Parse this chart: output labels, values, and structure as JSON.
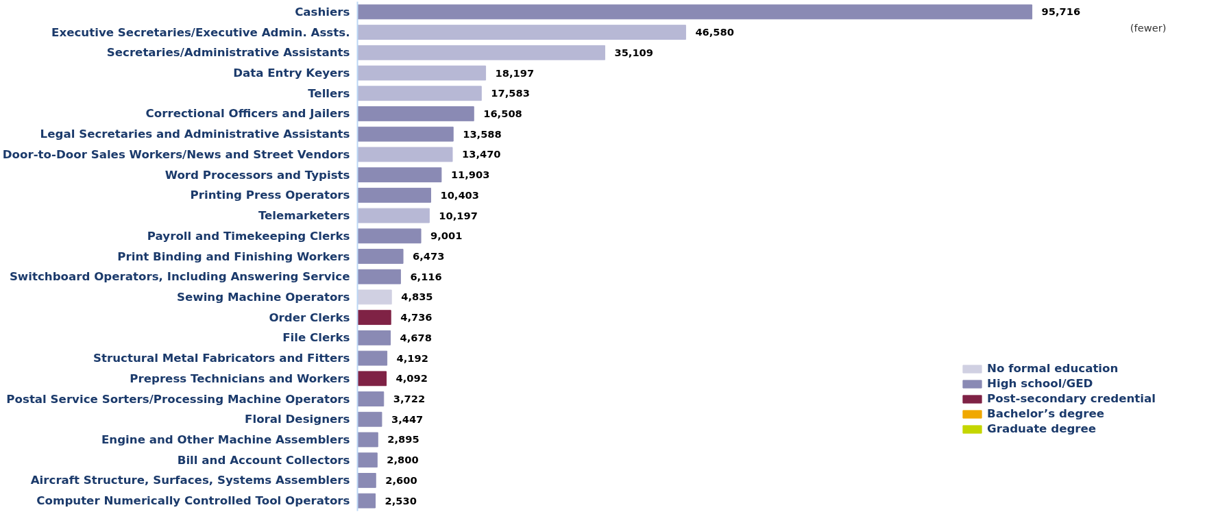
{
  "chart_data": {
    "type": "bar",
    "orientation": "horizontal",
    "categories": [
      "Cashiers",
      "Executive Secretaries/Executive Admin. Assts.",
      "Secretaries/Administrative Assistants",
      "Data Entry Keyers",
      "Tellers",
      "Correctional Officers and Jailers",
      "Legal Secretaries and Administrative Assistants",
      "Door-to-Door Sales Workers/News and Street Vendors",
      "Word Processors and Typists",
      "Printing Press Operators",
      "Telemarketers",
      "Payroll and Timekeeping Clerks",
      "Print Binding and Finishing Workers",
      "Switchboard Operators, Including Answering Service",
      "Sewing Machine Operators",
      "Order Clerks",
      "File Clerks",
      "Structural Metal Fabricators and Fitters",
      "Prepress Technicians and Workers",
      "Postal Service Sorters/Processing Machine Operators",
      "Floral Designers",
      "Engine and Other Machine Assemblers",
      "Bill and Account Collectors",
      "Aircraft Structure, Surfaces, Systems Assemblers",
      "Computer Numerically Controlled Tool Operators"
    ],
    "series": [
      {
        "name": "No formal education",
        "color": "#d0d0e2",
        "values": [
          null,
          null,
          null,
          null,
          null,
          null,
          null,
          null,
          null,
          null,
          null,
          null,
          null,
          null,
          4835,
          null,
          null,
          null,
          null,
          null,
          null,
          null,
          null,
          null,
          null
        ],
        "value_labels": [
          null,
          null,
          null,
          null,
          null,
          null,
          null,
          null,
          null,
          null,
          null,
          null,
          null,
          null,
          "4,835",
          null,
          null,
          null,
          null,
          null,
          null,
          null,
          null,
          null,
          null
        ]
      },
      {
        "name": "High school/GED",
        "color": "#8a8ab4",
        "values": [
          95716,
          null,
          null,
          null,
          null,
          16508,
          13588,
          null,
          11903,
          10403,
          null,
          9001,
          6473,
          6116,
          null,
          null,
          4678,
          4192,
          null,
          3722,
          3447,
          2895,
          2800,
          2600,
          2530
        ],
        "value_labels": [
          "95,716",
          null,
          null,
          null,
          null,
          "16,508",
          "13,588",
          null,
          "11,903",
          "10,403",
          null,
          "9,001",
          "6,473",
          "6,116",
          null,
          null,
          "4,678",
          "4,192",
          null,
          "3,722",
          "3,447",
          "2,895",
          "2,800",
          "2,600",
          "2,530"
        ]
      },
      {
        "name": "Post-secondary credential",
        "color": "#7f2245",
        "values": [
          null,
          null,
          null,
          null,
          null,
          null,
          null,
          null,
          null,
          null,
          null,
          null,
          null,
          null,
          null,
          4736,
          null,
          null,
          4092,
          null,
          null,
          null,
          null,
          null,
          null
        ],
        "value_labels": [
          null,
          null,
          null,
          null,
          null,
          null,
          null,
          null,
          null,
          null,
          null,
          null,
          null,
          null,
          null,
          "4,736",
          null,
          null,
          "4,092",
          null,
          null,
          null,
          null,
          null,
          null
        ]
      },
      {
        "name": "Bachelor’s degree",
        "color": "#f0a800",
        "values": [
          null,
          null,
          null,
          null,
          null,
          null,
          null,
          null,
          null,
          null,
          null,
          null,
          null,
          null,
          null,
          null,
          null,
          null,
          null,
          null,
          null,
          null,
          null,
          null,
          null
        ]
      },
      {
        "name": "Graduate degree",
        "color": "#c4d600",
        "values": [
          null,
          null,
          null,
          null,
          null,
          null,
          null,
          null,
          null,
          null,
          null,
          null,
          null,
          null,
          null,
          null,
          null,
          null,
          null,
          null,
          null,
          null,
          null,
          null,
          null
        ]
      },
      {
        "color": "#b7b8d5",
        "values": [
          null,
          46580,
          35109,
          18197,
          17583,
          null,
          null,
          13470,
          null,
          null,
          10197,
          null,
          null,
          null,
          null,
          null,
          null,
          null,
          null,
          null,
          null,
          null,
          null,
          null,
          null
        ],
        "value_labels": [
          null,
          "46,580",
          "35,109",
          "18,197",
          "17,583",
          null,
          null,
          "13,470",
          null,
          null,
          "10,197",
          null,
          null,
          null,
          null,
          null,
          null,
          null,
          null,
          null,
          null,
          null,
          null,
          null,
          null
        ]
      }
    ],
    "tick_labels": "y",
    "legend": "bottom right",
    "annotations": [
      "(fewer)"
    ]
  }
}
